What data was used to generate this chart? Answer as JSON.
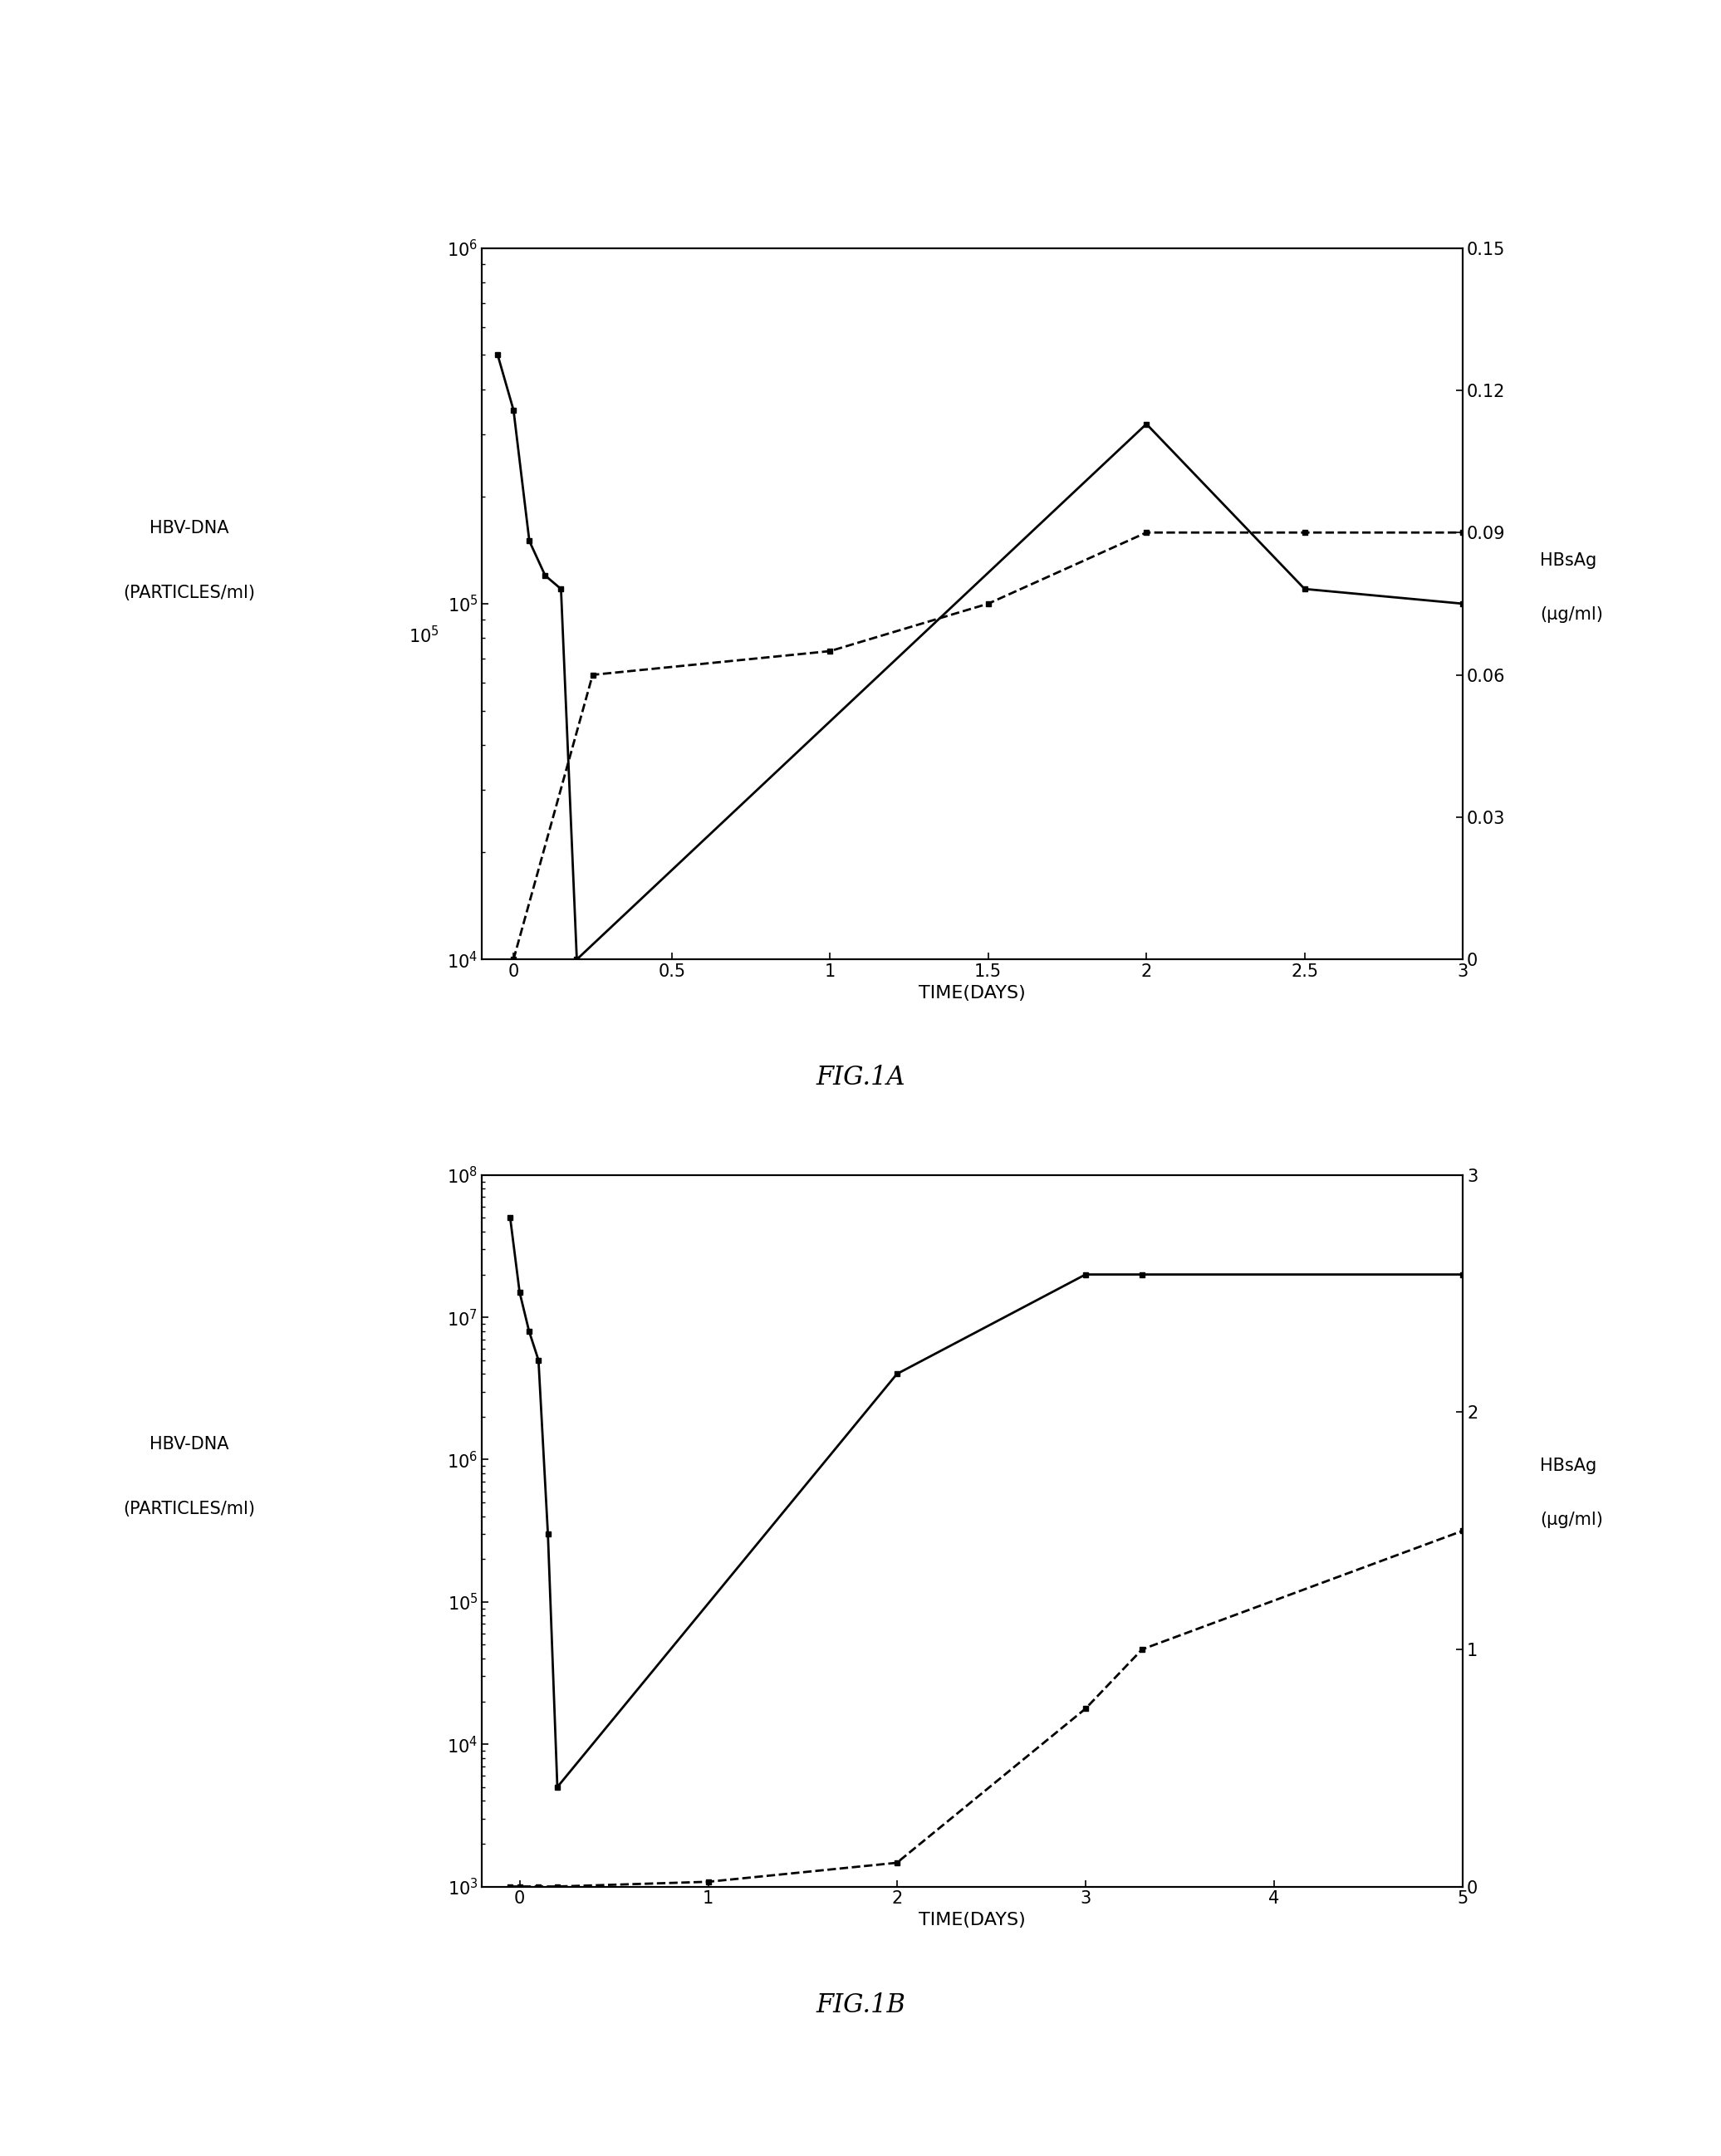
{
  "fig1a": {
    "solid_x": [
      -0.05,
      0.0,
      0.05,
      0.1,
      0.15,
      0.2,
      2.0,
      2.5,
      3.0
    ],
    "solid_y": [
      500000.0,
      350000.0,
      150000.0,
      120000.0,
      110000.0,
      10000.0,
      320000.0,
      110000.0,
      100000.0
    ],
    "dashed_x": [
      0.0,
      0.25,
      1.0,
      1.5,
      2.0,
      2.5,
      3.0
    ],
    "dashed_y": [
      0.0,
      0.06,
      0.065,
      0.075,
      0.09,
      0.09,
      0.09
    ],
    "xlim": [
      -0.1,
      3.0
    ],
    "xticks": [
      0.0,
      0.5,
      1.0,
      1.5,
      2.0,
      2.5,
      3.0
    ],
    "xticklabels": [
      "0",
      "0.5",
      "1",
      "1.5",
      "2",
      "2.5",
      "3"
    ],
    "ylim_left": [
      10000.0,
      1000000.0
    ],
    "ylim_right": [
      0,
      0.15
    ],
    "yticks_left": [
      10000.0,
      100000.0,
      1000000.0
    ],
    "yticklabels_left": [
      "$10^4$",
      "$10^5$",
      "$10^6$"
    ],
    "yticks_right": [
      0,
      0.03,
      0.06,
      0.09,
      0.12,
      0.15
    ],
    "yticklabels_right": [
      "0",
      "0.03",
      "0.06",
      "0.09",
      "0.12",
      "0.15"
    ],
    "ylabel_left_1": "HBV-DNA",
    "ylabel_left_2": "(PARTICLES/ml)",
    "ylabel_left_exp": "$10^5$",
    "ylabel_right_1": "HBsAg",
    "ylabel_right_2": "(μg/ml)",
    "xlabel": "TIME(DAYS)",
    "caption": "FIG.1A"
  },
  "fig1b": {
    "solid_x": [
      -0.05,
      0.0,
      0.05,
      0.1,
      0.15,
      0.2,
      2.0,
      3.0,
      3.3,
      5.0
    ],
    "solid_y": [
      50000000.0,
      15000000.0,
      8000000.0,
      5000000.0,
      300000.0,
      5000.0,
      4000000.0,
      20000000.0,
      20000000.0,
      20000000.0
    ],
    "dashed_x": [
      -0.05,
      0.0,
      0.1,
      0.2,
      1.0,
      2.0,
      3.0,
      3.3,
      5.0
    ],
    "dashed_y": [
      0.0,
      0.0,
      0.0,
      0.0,
      0.02,
      0.1,
      0.75,
      1.0,
      1.5
    ],
    "xlim": [
      -0.2,
      5.0
    ],
    "xticks": [
      0,
      1,
      2,
      3,
      4,
      5
    ],
    "xticklabels": [
      "0",
      "1",
      "2",
      "3",
      "4",
      "5"
    ],
    "ylim_left": [
      1000.0,
      100000000.0
    ],
    "ylim_right": [
      0,
      3.0
    ],
    "yticks_left": [
      1000.0,
      10000.0,
      100000.0,
      1000000.0,
      10000000.0,
      100000000.0
    ],
    "yticklabels_left": [
      "$10^3$",
      "$10^4$",
      "$10^5$",
      "$10^6$",
      "$10^7$",
      "$10^8$"
    ],
    "yticks_right": [
      0,
      1,
      2,
      3
    ],
    "yticklabels_right": [
      "0",
      "1",
      "2",
      "3"
    ],
    "ylabel_left_1": "HBV-DNA",
    "ylabel_left_2": "(PARTICLES/ml)",
    "ylabel_right_1": "HBsAg",
    "ylabel_right_2": "(μg/ml)",
    "xlabel": "TIME(DAYS)",
    "caption": "FIG.1B"
  },
  "background_color": "#ffffff",
  "fontsize_label": 16,
  "fontsize_tick": 15,
  "fontsize_caption": 22,
  "fontsize_ylabel": 15
}
